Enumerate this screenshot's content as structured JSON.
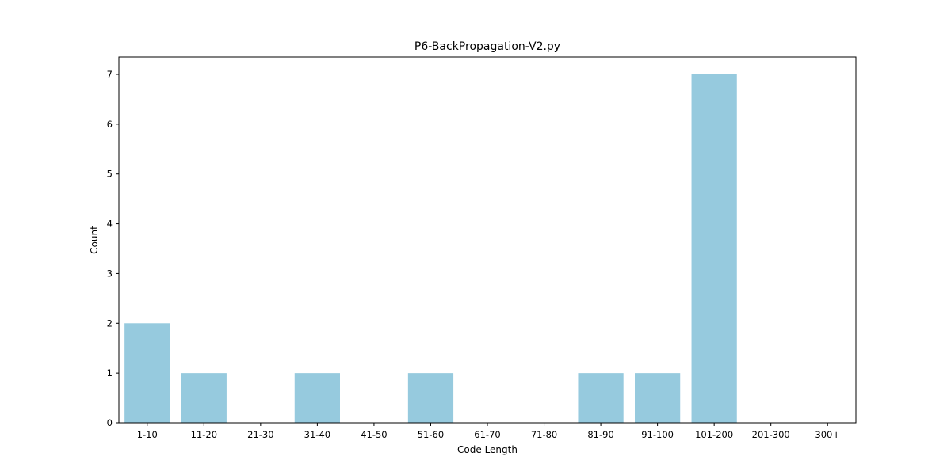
{
  "chart_data": {
    "type": "bar",
    "title": "P6-BackPropagation-V2.py",
    "xlabel": "Code Length",
    "ylabel": "Count",
    "categories": [
      "1-10",
      "11-20",
      "21-30",
      "31-40",
      "41-50",
      "51-60",
      "61-70",
      "71-80",
      "81-90",
      "91-100",
      "101-200",
      "201-300",
      "300+"
    ],
    "values": [
      2,
      1,
      0,
      1,
      0,
      1,
      0,
      0,
      1,
      1,
      7,
      0,
      0
    ],
    "ylim": [
      0,
      7.35
    ],
    "yticks": [
      0,
      1,
      2,
      3,
      4,
      5,
      6,
      7
    ],
    "grid": false,
    "legend": "none",
    "bar_color": "#96cade"
  }
}
